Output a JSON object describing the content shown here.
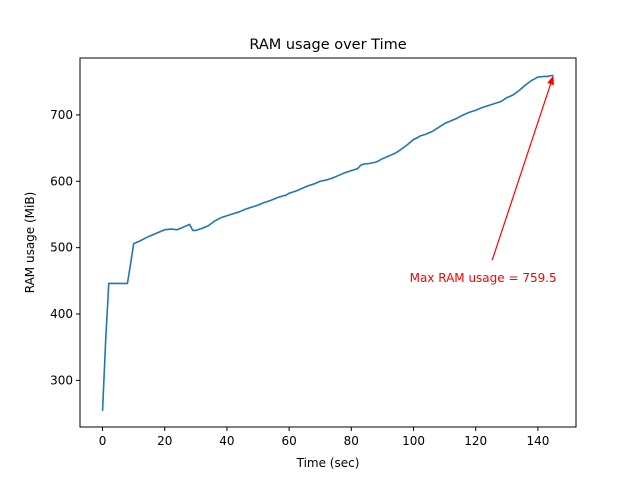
{
  "chart_data": {
    "type": "line",
    "title": "RAM usage over Time",
    "xlabel": "Time (sec)",
    "ylabel": "RAM usage (MiB)",
    "xlim": [
      -7.25,
      152.25
    ],
    "ylim": [
      229.75,
      785.75
    ],
    "xticks": [
      0,
      20,
      40,
      60,
      80,
      100,
      120,
      140
    ],
    "yticks": [
      300,
      400,
      500,
      600,
      700
    ],
    "grid": false,
    "legend": "none",
    "series": [
      {
        "color": "#1f77b4",
        "x": [
          0,
          1,
          2,
          4,
          6,
          8,
          9,
          10,
          12,
          14,
          16,
          18,
          20,
          22,
          24,
          26,
          27,
          28,
          29,
          30,
          32,
          34,
          36,
          38,
          40,
          42,
          44,
          46,
          48,
          50,
          52,
          54,
          56,
          58,
          59,
          60,
          62,
          64,
          66,
          68,
          69,
          70,
          72,
          74,
          76,
          78,
          80,
          82,
          83,
          84,
          86,
          88,
          90,
          92,
          94,
          96,
          98,
          100,
          101,
          102,
          104,
          106,
          108,
          110,
          112,
          114,
          116,
          118,
          120,
          122,
          124,
          126,
          128,
          130,
          131,
          132,
          134,
          136,
          138,
          140,
          142,
          143,
          144,
          145
        ],
        "y": [
          254,
          360,
          446,
          446,
          446,
          446,
          475,
          506,
          510,
          515,
          519,
          523,
          527,
          528,
          527,
          531,
          533,
          535,
          526,
          526,
          529,
          533,
          540,
          545,
          548,
          551,
          554,
          558,
          561,
          564,
          568,
          571,
          575,
          578,
          579,
          582,
          585,
          589,
          593,
          596,
          598,
          600,
          602,
          605,
          609,
          613,
          616,
          619,
          624,
          626,
          627,
          629,
          634,
          638,
          642,
          648,
          655,
          663,
          665,
          668,
          671,
          675,
          681,
          687,
          691,
          695,
          700,
          704,
          707,
          711,
          714,
          717,
          720,
          726,
          728,
          730,
          737,
          745,
          752,
          757,
          758,
          758,
          759,
          759.5
        ]
      }
    ],
    "annotations": [
      {
        "text": "Max RAM usage = 759.5",
        "color": "#ff0000",
        "xy": [
          145,
          759.5
        ],
        "xytext": [
          124,
          463
        ]
      }
    ]
  }
}
